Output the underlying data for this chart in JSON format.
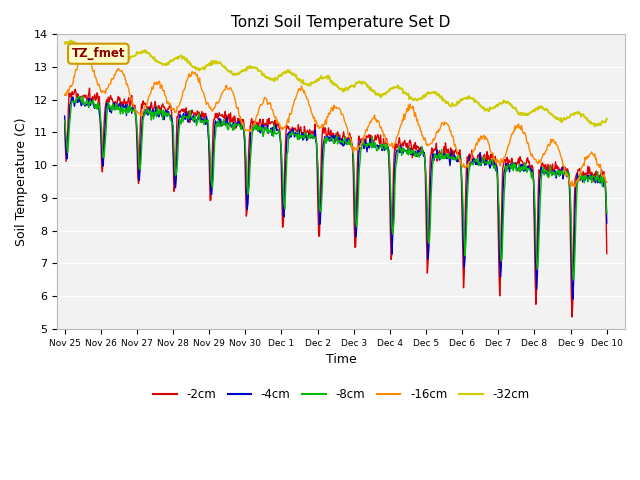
{
  "title": "Tonzi Soil Temperature Set D",
  "xlabel": "Time",
  "ylabel": "Soil Temperature (C)",
  "ylim": [
    5.0,
    14.0
  ],
  "yticks": [
    5.0,
    6.0,
    7.0,
    8.0,
    9.0,
    10.0,
    11.0,
    12.0,
    13.0,
    14.0
  ],
  "series_colors": {
    "-2cm": "#dd0000",
    "-4cm": "#0000cc",
    "-8cm": "#00bb00",
    "-16cm": "#ff8800",
    "-32cm": "#cccc00"
  },
  "legend_label": "TZ_fmet",
  "background_color": "#ffffff",
  "plot_bg_color": "#f2f2f2",
  "xtick_labels": [
    "Nov 25",
    "Nov 26",
    "Nov 27",
    "Nov 28",
    "Nov 29",
    "Nov 30",
    "Dec 1",
    "Dec 2",
    "Dec 3",
    "Dec 4",
    "Dec 5",
    "Dec 6",
    "Dec 7",
    "Dec 8",
    "Dec 9",
    "Dec 10"
  ]
}
